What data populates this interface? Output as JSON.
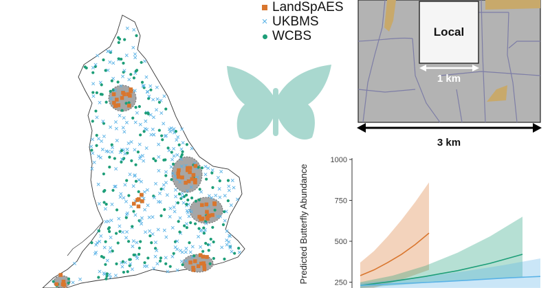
{
  "legend": {
    "items": [
      {
        "label": "LandSpAES",
        "symbol": "square",
        "color": "#d9762e"
      },
      {
        "label": "UKBMS",
        "symbol": "cross",
        "color": "#59b2e6"
      },
      {
        "label": "WCBS",
        "symbol": "dot",
        "color": "#1d9e78"
      }
    ]
  },
  "inset": {
    "local_label": "Local",
    "local_scale": "1 km",
    "landscape_scale": "3 km"
  },
  "colors": {
    "landspaes": "#d9762e",
    "ukbms": "#59b2e6",
    "wcbs": "#1d9e78",
    "butterfly": "#a9d8cf",
    "landscape": "#b3b3b3",
    "field_edge": "#7d7da6",
    "field_patch": "#c8a96b"
  },
  "chart_data": {
    "type": "line",
    "title": "",
    "xlabel": "",
    "ylabel": "Predicted Butterfly Abundance",
    "ylim": [
      0,
      1000
    ],
    "yticks": [
      250,
      500,
      750,
      1000
    ],
    "xlim": [
      0,
      1
    ],
    "series": [
      {
        "name": "LandSpAES",
        "color": "#d9762e",
        "x": [
          0.0,
          0.2,
          0.4,
          0.6,
          0.8,
          1.0
        ],
        "y": [
          290,
          325,
          370,
          420,
          480,
          550
        ],
        "lower": [
          190,
          215,
          240,
          265,
          295,
          325
        ],
        "upper": [
          370,
          440,
          530,
          630,
          740,
          860
        ]
      },
      {
        "name": "WCBS",
        "color": "#1d9e78",
        "x": [
          0.0,
          0.2,
          0.4,
          0.6,
          0.8,
          1.0
        ],
        "y": [
          230,
          255,
          285,
          320,
          365,
          420
        ],
        "lower": [
          215,
          230,
          245,
          260,
          270,
          280
        ],
        "upper": [
          250,
          290,
          350,
          430,
          530,
          650
        ]
      },
      {
        "name": "UKBMS",
        "color": "#59b2e6",
        "x": [
          0.0,
          0.2,
          0.4,
          0.6,
          0.8,
          1.0
        ],
        "y": [
          230,
          240,
          250,
          262,
          275,
          285
        ],
        "lower": [
          215,
          215,
          215,
          215,
          215,
          215
        ],
        "upper": [
          245,
          265,
          290,
          320,
          355,
          395
        ]
      }
    ]
  }
}
